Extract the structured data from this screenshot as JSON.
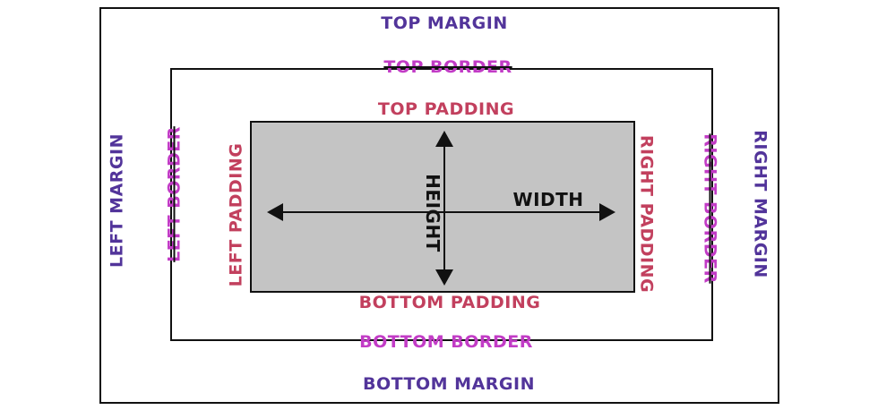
{
  "colors": {
    "margin": "#52349a",
    "border": "#c23cc6",
    "padding": "#c2405e",
    "content_fill": "#c4c4c4",
    "lines": "#111111"
  },
  "margin": {
    "top": "TOP MARGIN",
    "bottom": "BOTTOM MARGIN",
    "left": "LEFT MARGIN",
    "right": "RIGHT MARGIN"
  },
  "border": {
    "top": "TOP BORDER",
    "bottom": "BOTTOM BORDER",
    "left": "LEFT BORDER",
    "right": "RIGHT BORDER"
  },
  "padding": {
    "top": "TOP PADDING",
    "bottom": "BOTTOM PADDING",
    "left": "LEFT PADDING",
    "right": "RIGHT PADDING"
  },
  "content": {
    "width": "WIDTH",
    "height": "HEIGHT"
  }
}
